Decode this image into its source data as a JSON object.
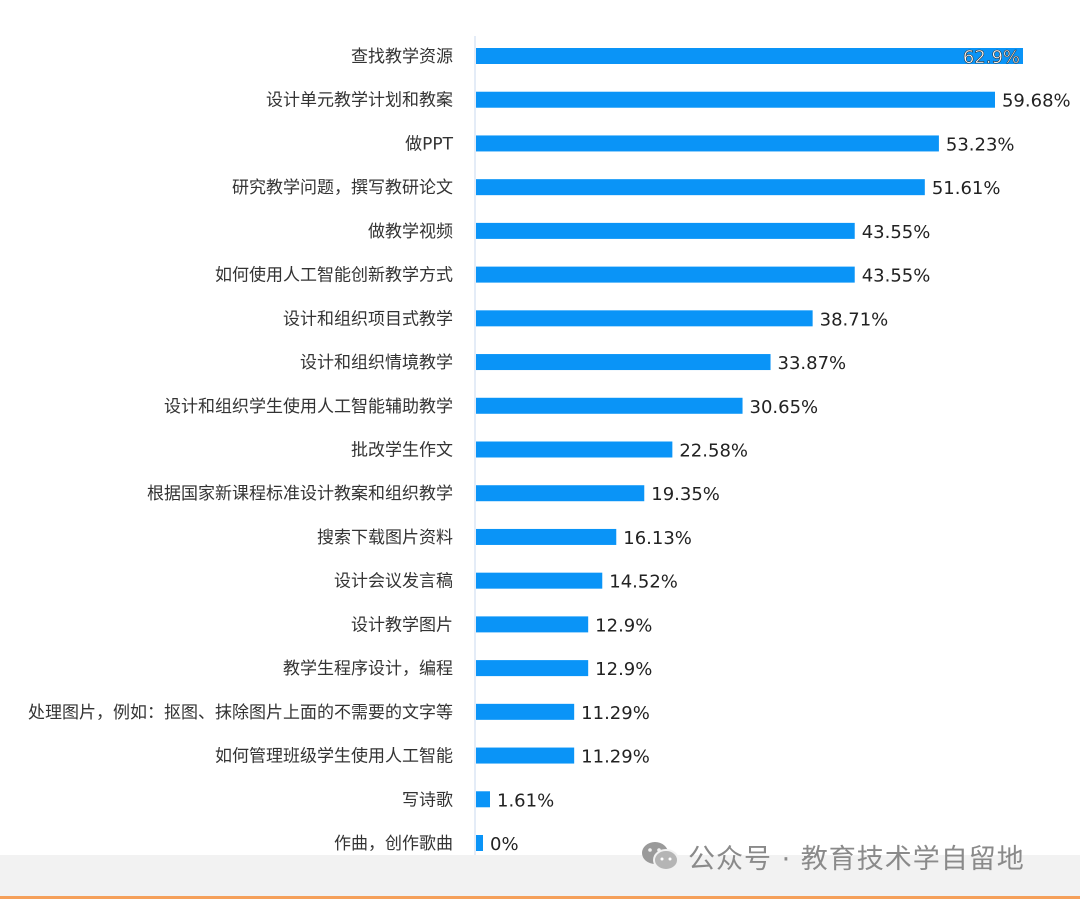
{
  "chart_data": {
    "type": "bar",
    "orientation": "horizontal",
    "categories": [
      "查找教学资源",
      "设计单元教学计划和教案",
      "做PPT",
      "研究教学问题，撰写教研论文",
      "做教学视频",
      "如何使用人工智能创新教学方式",
      "设计和组织项目式教学",
      "设计和组织情境教学",
      "设计和组织学生使用人工智能辅助教学",
      "批改学生作文",
      "根据国家新课程标准设计教案和组织教学",
      "搜索下载图片资料",
      "设计会议发言稿",
      "设计教学图片",
      "教学生程序设计，编程",
      "处理图片，例如：抠图、抹除图片上面的不需要的文字等",
      "如何管理班级学生使用人工智能",
      "写诗歌",
      "作曲，创作歌曲"
    ],
    "values": [
      62.9,
      59.68,
      53.23,
      51.61,
      43.55,
      43.55,
      38.71,
      33.87,
      30.65,
      22.58,
      19.35,
      16.13,
      14.52,
      12.9,
      12.9,
      11.29,
      11.29,
      1.61,
      0
    ],
    "labels": [
      "62.9%",
      "59.68%",
      "53.23%",
      "51.61%",
      "43.55%",
      "43.55%",
      "38.71%",
      "33.87%",
      "30.65%",
      "22.58%",
      "19.35%",
      "16.13%",
      "14.52%",
      "12.9%",
      "12.9%",
      "11.29%",
      "11.29%",
      "1.61%",
      "0%"
    ],
    "xlim": [
      0,
      63
    ],
    "grid": false,
    "bar_color": "#0a94f7"
  },
  "watermark": {
    "text": "公众号 · 教育技术学自留地",
    "icon": "wechat-icon"
  }
}
